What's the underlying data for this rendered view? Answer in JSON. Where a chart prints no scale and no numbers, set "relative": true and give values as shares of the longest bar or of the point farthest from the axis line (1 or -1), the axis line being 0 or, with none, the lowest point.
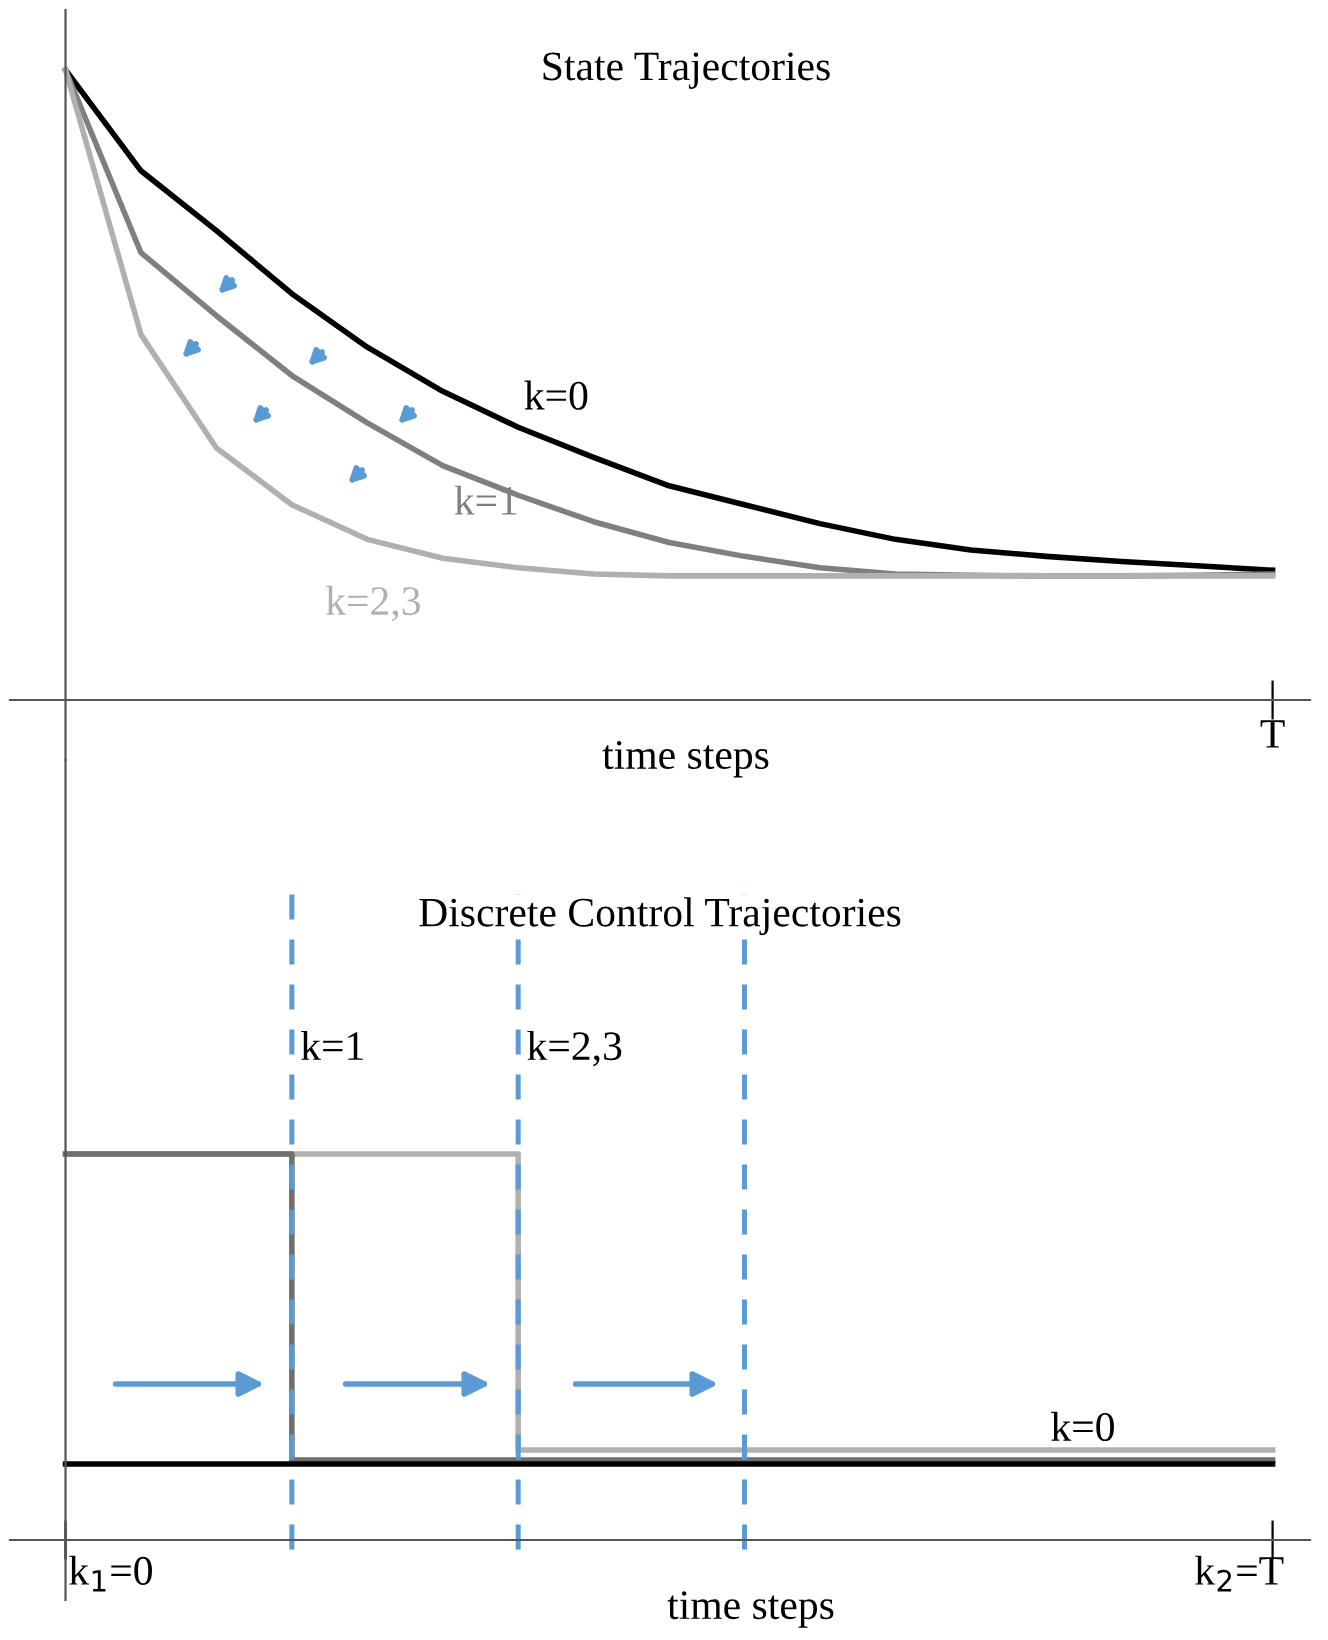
{
  "chart_data": [
    {
      "type": "line",
      "title": "State Trajectories",
      "xlabel": "time steps",
      "relative": true,
      "annotations": [
        "T"
      ],
      "categories": [
        null,
        null,
        null,
        null,
        null,
        null,
        null,
        null,
        null,
        null,
        null,
        null,
        null,
        null,
        null,
        null,
        null
      ],
      "series": [
        {
          "name": "k=0",
          "color": "#000000",
          "values": [
            1,
            0.84,
            0.745,
            0.645,
            0.56,
            0.49,
            0.433,
            0.385,
            0.34,
            0.31,
            0.28,
            0.255,
            0.238,
            0.228,
            0.22,
            0.213,
            0.206
          ]
        },
        {
          "name": "k=1",
          "color": "#7f7f7f",
          "values": [
            1,
            0.71,
            0.61,
            0.515,
            0.44,
            0.372,
            0.325,
            0.283,
            0.25,
            0.228,
            0.21,
            0.2,
            0.198,
            0.197,
            0.197,
            0.198,
            0.2
          ]
        },
        {
          "name": "k=2,3",
          "color": "#b0b0b0",
          "values": [
            1,
            0.58,
            0.4,
            0.31,
            0.255,
            0.225,
            0.21,
            0.2,
            0.197,
            0.197,
            0.197,
            0.197,
            0.197,
            0.197,
            0.197,
            0.197,
            0.197
          ]
        }
      ]
    },
    {
      "type": "step",
      "title": "Discrete Control Trajectories",
      "xlabel": "time steps",
      "relative": true,
      "grid": "x",
      "annotations": [
        "k=1",
        "k=2,3",
        "k$_{1}$=0",
        "k$_{2}$=T"
      ],
      "categories": [
        null,
        null,
        null,
        null,
        null,
        null,
        null,
        null,
        null,
        null,
        null,
        null,
        null,
        null,
        null,
        null,
        null
      ],
      "series": [
        {
          "color": "#b0b0b0",
          "values": [
            1,
            1,
            1,
            1,
            1,
            1,
            0.233,
            0.233,
            0.233,
            0.233,
            0.233,
            0.233,
            0.233,
            0.233,
            0.233,
            0.233,
            0.233
          ]
        },
        {
          "color": "#6f6f6f",
          "values": [
            1,
            1,
            1,
            0.207,
            0.207,
            0.207,
            0.207,
            0.207,
            0.207,
            0.207,
            0.207,
            0.207,
            0.207,
            0.207,
            0.207,
            0.207,
            0.207
          ]
        },
        {
          "name": "k=0",
          "color": "#000000",
          "values": [
            0.197,
            0.197,
            0.197,
            0.197,
            0.197,
            0.197,
            0.197,
            0.197,
            0.197,
            0.197,
            0.197,
            0.197,
            0.197,
            0.197,
            0.197,
            0.197,
            0.197
          ]
        }
      ]
    }
  ]
}
